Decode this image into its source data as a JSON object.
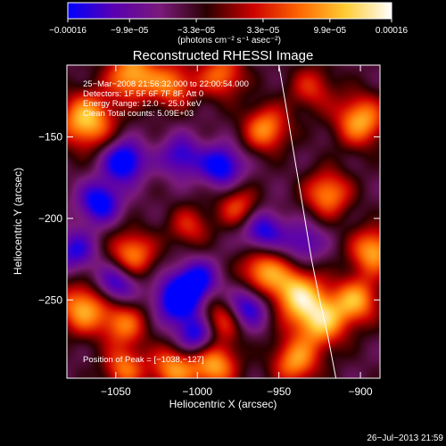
{
  "chart_data": {
    "type": "heatmap",
    "title": "Reconstructed RHESSI Image",
    "xlabel": "Heliocentric X (arcsec)",
    "ylabel": "Heliocentric Y (arcsec)",
    "xlim": [
      -1080,
      -888
    ],
    "ylim": [
      -298,
      -106
    ],
    "x_ticks": [
      -1050,
      -1000,
      -950,
      -900
    ],
    "x_tick_labels": [
      "−1050",
      "−1000",
      "−950",
      "−900"
    ],
    "y_ticks": [
      -250,
      -200,
      -150
    ],
    "y_tick_labels": [
      "−250",
      "−200",
      "−150"
    ],
    "colorbar": {
      "range": [
        -0.00016,
        0.00016
      ],
      "ticks": [
        -0.00016,
        -9.9e-05,
        -3.3e-05,
        3.3e-05,
        9.9e-05,
        0.00016
      ],
      "tick_labels": [
        "−0.00016",
        "−9.9e−05",
        "−3.3e−05",
        "3.3e−05",
        "9.9e−05",
        "0.00016"
      ],
      "unit_label": "(photons cm⁻² s⁻¹ asec⁻²)",
      "colormap": [
        "#0000ff",
        "#5a00b0",
        "#7a1a7a",
        "#2a0000",
        "#cc0000",
        "#ff6600",
        "#ffcc33",
        "#ffffff"
      ]
    },
    "annotations": [
      "25−Mar−2008 21:56:32.000 to 22:00:54.000",
      "Detectors: 1F 5F 6F 7F 8F, Att 0",
      "Energy Range: 12.0 − 25.0 keV",
      "Clean  Total counts: 5.09E+03"
    ],
    "peak_label": "Position of Peak = [−1038,−127]",
    "peak": [
      -1038,
      -127
    ],
    "limb_curve": {
      "x": [
        -950,
        -945,
        -940,
        -935,
        -930,
        -925,
        -920,
        -915
      ],
      "y": [
        -106,
        -135,
        -165,
        -195,
        -225,
        -250,
        -272,
        -298
      ]
    },
    "blobs": [
      {
        "x": -1068,
        "y": -140,
        "amp": 1.0,
        "r": 12
      },
      {
        "x": -1040,
        "y": -112,
        "amp": 0.9,
        "r": 11
      },
      {
        "x": -1015,
        "y": -118,
        "amp": 0.7,
        "r": 10
      },
      {
        "x": -985,
        "y": -112,
        "amp": 0.7,
        "r": 10
      },
      {
        "x": -958,
        "y": -145,
        "amp": 0.8,
        "r": 10
      },
      {
        "x": -930,
        "y": -120,
        "amp": 0.5,
        "r": 10
      },
      {
        "x": -900,
        "y": -140,
        "amp": 0.9,
        "r": 11
      },
      {
        "x": -920,
        "y": -185,
        "amp": 0.8,
        "r": 10
      },
      {
        "x": -892,
        "y": -220,
        "amp": 0.9,
        "r": 10
      },
      {
        "x": -975,
        "y": -193,
        "amp": 0.6,
        "r": 9
      },
      {
        "x": -1005,
        "y": -205,
        "amp": 0.5,
        "r": 9
      },
      {
        "x": -1040,
        "y": -222,
        "amp": 0.8,
        "r": 10
      },
      {
        "x": -1070,
        "y": -255,
        "amp": 0.9,
        "r": 11
      },
      {
        "x": -1045,
        "y": -265,
        "amp": 0.7,
        "r": 10
      },
      {
        "x": -985,
        "y": -262,
        "amp": 0.7,
        "r": 10
      },
      {
        "x": -960,
        "y": -232,
        "amp": 0.8,
        "r": 10
      },
      {
        "x": -940,
        "y": -245,
        "amp": 0.9,
        "r": 11
      },
      {
        "x": -925,
        "y": -262,
        "amp": 1.0,
        "r": 12
      },
      {
        "x": -902,
        "y": -250,
        "amp": 0.8,
        "r": 10
      },
      {
        "x": -990,
        "y": -290,
        "amp": 0.9,
        "r": 10
      },
      {
        "x": -1015,
        "y": -292,
        "amp": 0.8,
        "r": 10
      },
      {
        "x": -1045,
        "y": -292,
        "amp": 0.7,
        "r": 9
      },
      {
        "x": -940,
        "y": -288,
        "amp": 0.8,
        "r": 10
      },
      {
        "x": -1045,
        "y": -165,
        "amp": -0.9,
        "r": 9
      },
      {
        "x": -1010,
        "y": -162,
        "amp": -0.6,
        "r": 9
      },
      {
        "x": -985,
        "y": -168,
        "amp": -0.8,
        "r": 9
      },
      {
        "x": -1060,
        "y": -190,
        "amp": -0.8,
        "r": 9
      },
      {
        "x": -1050,
        "y": -240,
        "amp": -0.7,
        "r": 9
      },
      {
        "x": -1012,
        "y": -250,
        "amp": -0.9,
        "r": 10
      },
      {
        "x": -1000,
        "y": -238,
        "amp": -0.7,
        "r": 9
      },
      {
        "x": -970,
        "y": -255,
        "amp": -0.8,
        "r": 9
      },
      {
        "x": -960,
        "y": -208,
        "amp": -0.7,
        "r": 9
      },
      {
        "x": -935,
        "y": -215,
        "amp": -0.5,
        "r": 9
      },
      {
        "x": -1000,
        "y": -272,
        "amp": -0.8,
        "r": 9
      },
      {
        "x": -1075,
        "y": -220,
        "amp": -0.6,
        "r": 9
      }
    ]
  },
  "footer": {
    "timestamp": "26−Jul−2013 21:59"
  }
}
